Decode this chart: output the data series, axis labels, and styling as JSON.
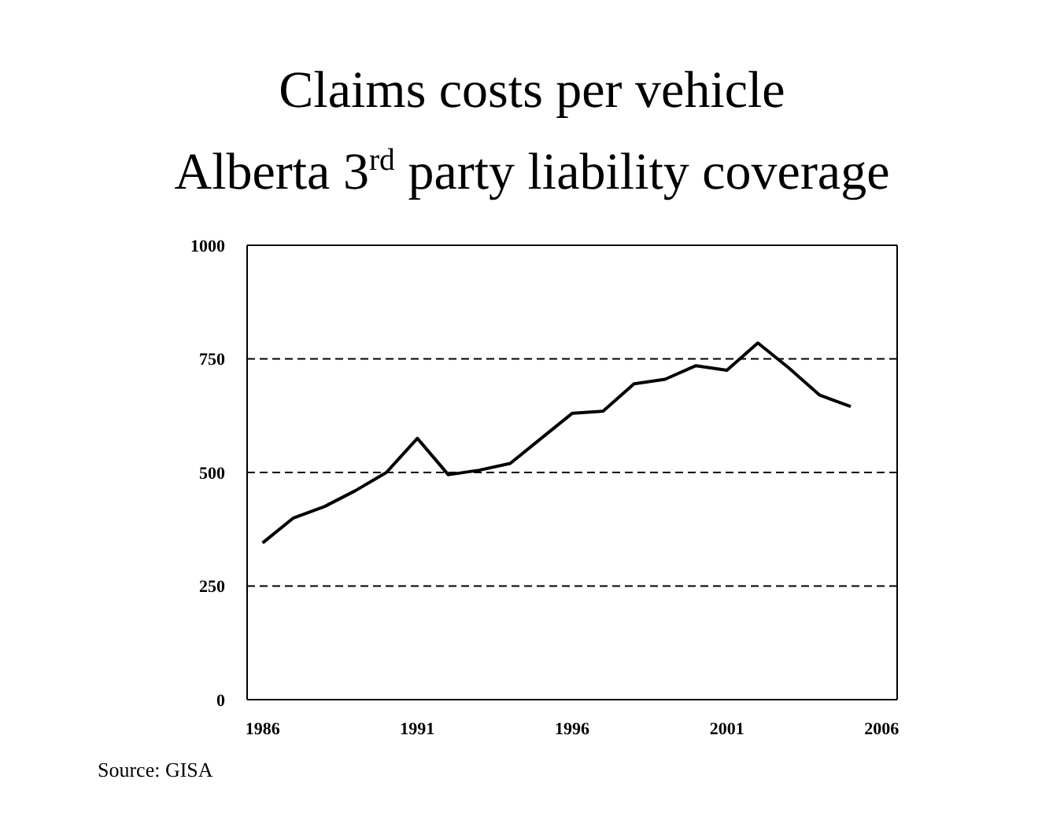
{
  "chart_data": {
    "type": "line",
    "title": "Claims costs per vehicle",
    "subtitle": "Alberta 3$^{rd}$ party liability coverage",
    "x": [
      1986,
      1987,
      1988,
      1989,
      1990,
      1991,
      1992,
      1993,
      1994,
      1995,
      1996,
      1997,
      1998,
      1999,
      2000,
      2001,
      2002,
      2003,
      2004,
      2005
    ],
    "series": [
      {
        "color": "#000000",
        "values": [
          345,
          400,
          425,
          460,
          500,
          575,
          495,
          505,
          520,
          575,
          630,
          635,
          695,
          705,
          735,
          725,
          785,
          730,
          670,
          645
        ]
      }
    ],
    "xlim": [
      1985.5,
      2006.5
    ],
    "xticks": [
      1986,
      1991,
      1996,
      2001,
      2006
    ],
    "ylim": [
      0,
      1000
    ],
    "yticks": [
      0,
      250,
      500,
      750,
      1000
    ],
    "grid": "y",
    "marker": "none",
    "line_style": "solid",
    "annotations": [
      "Source: GISA"
    ]
  }
}
